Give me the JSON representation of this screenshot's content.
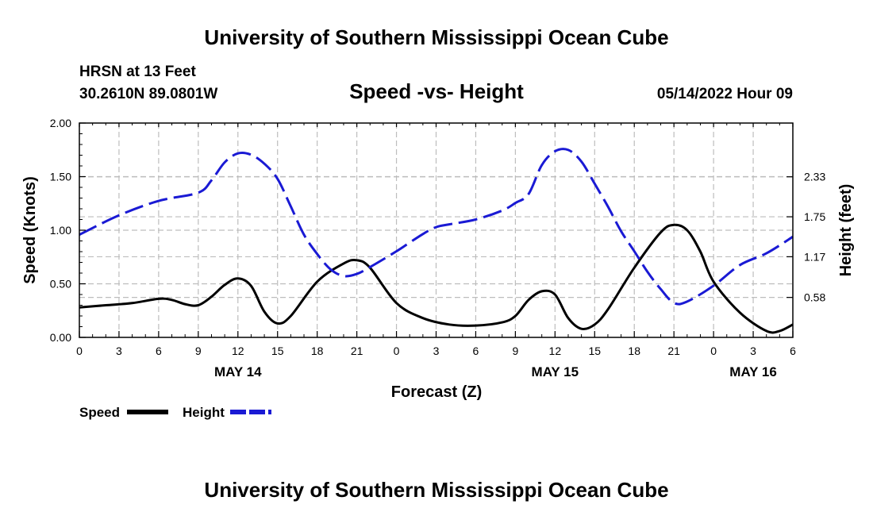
{
  "chart_data": {
    "type": "line",
    "title": "University of Southern Mississippi Ocean Cube",
    "footer_title": "University of Southern Mississippi Ocean Cube",
    "subtitle": "Speed -vs- Height",
    "station": "HRSN at 13 Feet",
    "location": "30.2610N  89.0801W",
    "datetime": "05/14/2022 Hour 09",
    "xlabel": "Forecast (Z)",
    "ylabel_left": "Speed (Knots)",
    "ylabel_right": "Height (feet)",
    "x_range": [
      0,
      54
    ],
    "y_left_range": [
      0,
      2.0
    ],
    "y_right_range": [
      0,
      3.11
    ],
    "x_ticks": [
      0,
      3,
      6,
      9,
      12,
      15,
      18,
      21,
      24,
      27,
      30,
      33,
      36,
      39,
      42,
      45,
      48,
      51,
      54
    ],
    "x_tick_labels": [
      "0",
      "3",
      "6",
      "9",
      "12",
      "15",
      "18",
      "21",
      "0",
      "3",
      "6",
      "9",
      "12",
      "15",
      "18",
      "21",
      "0",
      "3",
      "6"
    ],
    "day_labels": [
      {
        "label": "MAY 14",
        "x": 12
      },
      {
        "label": "MAY 15",
        "x": 36
      },
      {
        "label": "MAY 16",
        "x": 51
      }
    ],
    "y_left_ticks": [
      0,
      0.5,
      1.0,
      1.5,
      2.0
    ],
    "y_left_tick_labels": [
      "0.00",
      "0.50",
      "1.00",
      "1.50",
      "2.00"
    ],
    "y_right_ticks": [
      0.58,
      1.17,
      1.75,
      2.33
    ],
    "y_right_tick_labels": [
      "0.58",
      "1.17",
      "1.75",
      "2.33"
    ],
    "grid": true,
    "legend_position": "bottom-left",
    "series": [
      {
        "name": "Speed",
        "axis": "left",
        "color": "#000000",
        "style": "solid",
        "x": [
          0,
          2,
          4,
          6,
          7,
          8,
          9,
          10,
          11,
          12,
          13,
          14,
          15,
          16,
          18,
          20,
          21,
          22,
          24,
          26,
          28,
          30,
          32,
          33,
          34,
          35,
          36,
          37,
          38,
          39,
          40,
          42,
          44,
          45,
          46,
          47,
          48,
          50,
          52,
          53,
          54
        ],
        "values": [
          0.28,
          0.3,
          0.32,
          0.36,
          0.35,
          0.31,
          0.3,
          0.38,
          0.49,
          0.55,
          0.48,
          0.24,
          0.13,
          0.2,
          0.52,
          0.69,
          0.72,
          0.65,
          0.32,
          0.18,
          0.12,
          0.11,
          0.14,
          0.2,
          0.35,
          0.43,
          0.4,
          0.18,
          0.08,
          0.12,
          0.26,
          0.65,
          0.98,
          1.05,
          1.0,
          0.8,
          0.52,
          0.23,
          0.06,
          0.06,
          0.12
        ]
      },
      {
        "name": "Height",
        "axis": "right",
        "color": "#1a1ad4",
        "style": "dashed",
        "x": [
          0,
          3,
          6,
          9,
          10,
          11,
          12,
          13,
          14,
          15,
          16,
          17,
          18,
          19,
          20,
          21,
          22,
          24,
          26,
          27,
          28,
          30,
          32,
          33,
          34,
          35,
          36,
          37,
          38,
          39,
          40,
          41,
          42,
          43,
          44,
          45,
          46,
          48,
          50,
          52,
          54
        ],
        "values": [
          1.49,
          1.77,
          1.98,
          2.1,
          2.28,
          2.54,
          2.67,
          2.65,
          2.52,
          2.3,
          1.9,
          1.49,
          1.21,
          0.99,
          0.89,
          0.92,
          1.02,
          1.25,
          1.5,
          1.6,
          1.64,
          1.71,
          1.84,
          1.95,
          2.08,
          2.5,
          2.7,
          2.72,
          2.55,
          2.23,
          1.9,
          1.54,
          1.25,
          0.95,
          0.7,
          0.5,
          0.52,
          0.75,
          1.05,
          1.22,
          1.46
        ]
      }
    ]
  }
}
